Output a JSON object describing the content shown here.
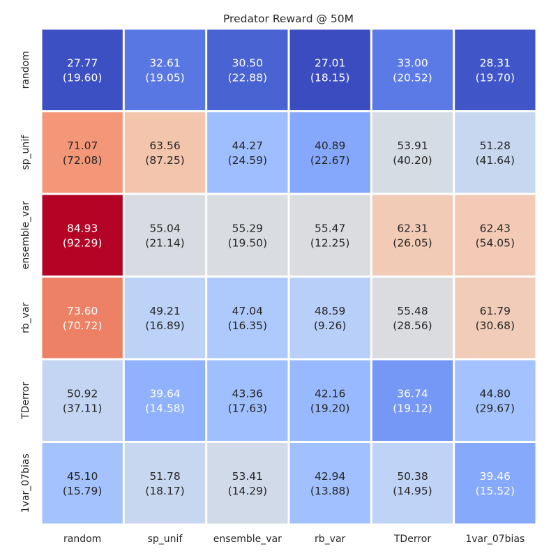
{
  "chart_data": {
    "type": "heatmap",
    "title": "Predator Reward @ 50M",
    "x_categories": [
      "random",
      "sp_unif",
      "ensemble_var",
      "rb_var",
      "TDerror",
      "1var_07bias"
    ],
    "y_categories": [
      "random",
      "sp_unif",
      "ensemble_var",
      "rb_var",
      "TDerror",
      "1var_07bias"
    ],
    "values": [
      [
        27.77,
        32.61,
        30.5,
        27.01,
        33.0,
        28.31
      ],
      [
        71.07,
        63.56,
        44.27,
        40.89,
        53.91,
        51.28
      ],
      [
        84.93,
        55.04,
        55.29,
        55.47,
        62.31,
        62.43
      ],
      [
        73.6,
        49.21,
        47.04,
        48.59,
        55.48,
        61.79
      ],
      [
        50.92,
        39.64,
        43.36,
        42.16,
        36.74,
        44.8
      ],
      [
        45.1,
        51.78,
        53.41,
        42.94,
        50.38,
        39.46
      ]
    ],
    "annotations": [
      [
        "27.77\n(19.60)",
        "32.61\n(19.05)",
        "30.50\n(22.88)",
        "27.01\n(18.15)",
        "33.00\n(20.52)",
        "28.31\n(19.70)"
      ],
      [
        "71.07\n(72.08)",
        "63.56\n(87.25)",
        "44.27\n(24.59)",
        "40.89\n(22.67)",
        "53.91\n(40.20)",
        "51.28\n(41.64)"
      ],
      [
        "84.93\n(92.29)",
        "55.04\n(21.14)",
        "55.29\n(19.50)",
        "55.47\n(12.25)",
        "62.31\n(26.05)",
        "62.43\n(54.05)"
      ],
      [
        "73.60\n(70.72)",
        "49.21\n(16.89)",
        "47.04\n(16.35)",
        "48.59\n(9.26)",
        "55.48\n(28.56)",
        "61.79\n(30.68)"
      ],
      [
        "50.92\n(37.11)",
        "39.64\n(14.58)",
        "43.36\n(17.63)",
        "42.16\n(19.20)",
        "36.74\n(19.12)",
        "44.80\n(29.67)"
      ],
      [
        "45.10\n(15.79)",
        "51.78\n(18.17)",
        "53.41\n(14.29)",
        "42.94\n(13.88)",
        "50.38\n(14.95)",
        "39.46\n(15.52)"
      ]
    ],
    "cell_colors": [
      [
        "#3d50c3",
        "#5977e3",
        "#4a63d3",
        "#3b4cc0",
        "#5b7ae5",
        "#4055c8"
      ],
      [
        "#f39778",
        "#f4c5ad",
        "#9ebeff",
        "#85a8fc",
        "#d6dce4",
        "#c7d7f0"
      ],
      [
        "#b40426",
        "#d8dce2",
        "#d9dce1",
        "#dadce0",
        "#f2cbb7",
        "#f2cab5"
      ],
      [
        "#ec8165",
        "#bcd2f7",
        "#aec9fc",
        "#b7cff9",
        "#dadce0",
        "#f1ccb8"
      ],
      [
        "#c4d5f3",
        "#8fb1fe",
        "#9fbfff",
        "#98b9ff",
        "#7597f6",
        "#a3c2fe"
      ],
      [
        "#a3c2fe",
        "#c7d7f0",
        "#d1dae9",
        "#a1c0ff",
        "#bfd3f6",
        "#86a9fc"
      ]
    ],
    "text_light": [
      [
        true,
        true,
        true,
        true,
        true,
        true
      ],
      [
        false,
        false,
        false,
        false,
        false,
        false
      ],
      [
        true,
        false,
        false,
        false,
        false,
        false
      ],
      [
        true,
        false,
        false,
        false,
        false,
        false
      ],
      [
        false,
        true,
        false,
        false,
        true,
        false
      ],
      [
        false,
        false,
        false,
        false,
        false,
        true
      ]
    ],
    "colormap": "coolwarm",
    "colorbar": false,
    "xlabel": "",
    "ylabel": ""
  }
}
